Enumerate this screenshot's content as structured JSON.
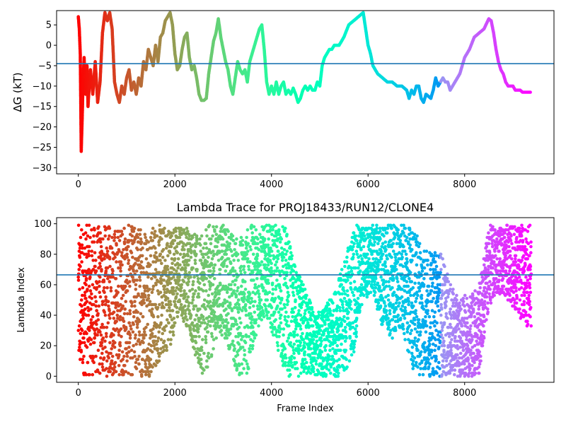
{
  "chart_data": [
    {
      "type": "scatter",
      "title": "",
      "xlabel": "",
      "ylabel": "ΔG (kT)",
      "xlim": [
        -450,
        9850
      ],
      "ylim": [
        -31.5,
        8.5
      ],
      "xticks": [
        0,
        2000,
        4000,
        6000,
        8000
      ],
      "yticks": [
        5,
        0,
        -5,
        -10,
        -15,
        -20,
        -25,
        -30
      ],
      "hline": -4.5,
      "hline_color": "#1f77b4",
      "colormap": "rainbow (reversed: red at frame 0, violet at last frame)",
      "grid": false,
      "trace": [
        [
          0,
          7
        ],
        [
          20,
          4
        ],
        [
          40,
          -2
        ],
        [
          60,
          -26
        ],
        [
          80,
          -18
        ],
        [
          100,
          -8
        ],
        [
          120,
          -3
        ],
        [
          150,
          -12
        ],
        [
          180,
          -5
        ],
        [
          200,
          -15
        ],
        [
          250,
          -6
        ],
        [
          300,
          -12
        ],
        [
          350,
          -4
        ],
        [
          400,
          -14
        ],
        [
          450,
          -9
        ],
        [
          500,
          3
        ],
        [
          550,
          8
        ],
        [
          600,
          6
        ],
        [
          650,
          8
        ],
        [
          700,
          4
        ],
        [
          750,
          -9
        ],
        [
          800,
          -12
        ],
        [
          850,
          -14
        ],
        [
          900,
          -10
        ],
        [
          950,
          -12
        ],
        [
          1000,
          -8
        ],
        [
          1050,
          -6
        ],
        [
          1100,
          -11
        ],
        [
          1150,
          -9
        ],
        [
          1200,
          -12
        ],
        [
          1250,
          -8
        ],
        [
          1300,
          -10
        ],
        [
          1350,
          -4
        ],
        [
          1400,
          -6
        ],
        [
          1450,
          -1
        ],
        [
          1500,
          -3
        ],
        [
          1550,
          -5
        ],
        [
          1600,
          0
        ],
        [
          1650,
          -4
        ],
        [
          1700,
          2
        ],
        [
          1750,
          3
        ],
        [
          1800,
          6
        ],
        [
          1850,
          7
        ],
        [
          1900,
          8
        ],
        [
          1950,
          5
        ],
        [
          2000,
          -2
        ],
        [
          2050,
          -6
        ],
        [
          2100,
          -5
        ],
        [
          2150,
          -1
        ],
        [
          2200,
          2
        ],
        [
          2250,
          3
        ],
        [
          2300,
          -3
        ],
        [
          2350,
          -6
        ],
        [
          2400,
          -5
        ],
        [
          2450,
          -8
        ],
        [
          2500,
          -12
        ],
        [
          2550,
          -13.5
        ],
        [
          2600,
          -13.5
        ],
        [
          2650,
          -13
        ],
        [
          2700,
          -7
        ],
        [
          2750,
          -3
        ],
        [
          2800,
          1
        ],
        [
          2850,
          3
        ],
        [
          2900,
          6.5
        ],
        [
          2950,
          2
        ],
        [
          3000,
          -1
        ],
        [
          3050,
          -4
        ],
        [
          3100,
          -6
        ],
        [
          3150,
          -10
        ],
        [
          3200,
          -12
        ],
        [
          3250,
          -8
        ],
        [
          3300,
          -4
        ],
        [
          3350,
          -6
        ],
        [
          3400,
          -7
        ],
        [
          3450,
          -6
        ],
        [
          3500,
          -9
        ],
        [
          3550,
          -4
        ],
        [
          3600,
          -2
        ],
        [
          3650,
          0
        ],
        [
          3700,
          2
        ],
        [
          3750,
          4
        ],
        [
          3800,
          5
        ],
        [
          3850,
          -1
        ],
        [
          3900,
          -9
        ],
        [
          3950,
          -12
        ],
        [
          4000,
          -10
        ],
        [
          4050,
          -12
        ],
        [
          4100,
          -9
        ],
        [
          4150,
          -12
        ],
        [
          4200,
          -10
        ],
        [
          4250,
          -9
        ],
        [
          4300,
          -12
        ],
        [
          4350,
          -11
        ],
        [
          4400,
          -12
        ],
        [
          4450,
          -10.5
        ],
        [
          4500,
          -12
        ],
        [
          4550,
          -14
        ],
        [
          4600,
          -13
        ],
        [
          4650,
          -11
        ],
        [
          4700,
          -10
        ],
        [
          4750,
          -11
        ],
        [
          4800,
          -10
        ],
        [
          4850,
          -11
        ],
        [
          4900,
          -11
        ],
        [
          4950,
          -9
        ],
        [
          5000,
          -10
        ],
        [
          5050,
          -5
        ],
        [
          5100,
          -3
        ],
        [
          5150,
          -2
        ],
        [
          5200,
          -1
        ],
        [
          5250,
          -1
        ],
        [
          5300,
          0
        ],
        [
          5400,
          0
        ],
        [
          5500,
          2
        ],
        [
          5600,
          5
        ],
        [
          5700,
          6
        ],
        [
          5800,
          7
        ],
        [
          5900,
          8
        ],
        [
          5950,
          4
        ],
        [
          6000,
          0
        ],
        [
          6050,
          -2
        ],
        [
          6100,
          -5
        ],
        [
          6200,
          -7
        ],
        [
          6300,
          -8
        ],
        [
          6400,
          -9
        ],
        [
          6500,
          -9
        ],
        [
          6600,
          -10
        ],
        [
          6700,
          -10
        ],
        [
          6800,
          -11
        ],
        [
          6850,
          -13
        ],
        [
          6900,
          -11
        ],
        [
          6950,
          -12
        ],
        [
          7000,
          -10
        ],
        [
          7050,
          -10
        ],
        [
          7100,
          -13
        ],
        [
          7150,
          -14
        ],
        [
          7200,
          -12
        ],
        [
          7300,
          -13
        ],
        [
          7350,
          -11
        ],
        [
          7400,
          -8
        ],
        [
          7450,
          -10
        ],
        [
          7550,
          -8
        ],
        [
          7600,
          -9
        ],
        [
          7650,
          -9
        ],
        [
          7700,
          -11
        ],
        [
          7800,
          -9
        ],
        [
          7900,
          -7
        ],
        [
          8000,
          -3
        ],
        [
          8100,
          -1
        ],
        [
          8200,
          2
        ],
        [
          8300,
          3
        ],
        [
          8400,
          4
        ],
        [
          8500,
          6.5
        ],
        [
          8550,
          6
        ],
        [
          8600,
          3
        ],
        [
          8650,
          -1
        ],
        [
          8700,
          -4
        ],
        [
          8750,
          -6
        ],
        [
          8800,
          -7
        ],
        [
          8850,
          -9
        ],
        [
          8900,
          -10
        ],
        [
          8950,
          -10
        ],
        [
          9000,
          -10
        ],
        [
          9050,
          -11
        ],
        [
          9100,
          -11
        ],
        [
          9150,
          -11
        ],
        [
          9200,
          -11.5
        ],
        [
          9300,
          -11.5
        ],
        [
          9380,
          -11.5
        ]
      ]
    },
    {
      "type": "scatter",
      "title": "Lambda Trace for PROJ18433/RUN12/CLONE4",
      "xlabel": "Frame Index",
      "ylabel": "Lambda Index",
      "xlim": [
        -450,
        9850
      ],
      "ylim": [
        -4,
        104
      ],
      "xticks": [
        0,
        2000,
        4000,
        6000,
        8000
      ],
      "yticks": [
        0,
        20,
        40,
        60,
        80,
        100
      ],
      "hline": 66.5,
      "hline_color": "#1f77b4",
      "colormap": "rainbow (reversed: red at frame 0, violet at last frame)",
      "grid": false,
      "point_count": 5000,
      "frame_range": [
        0,
        9380
      ],
      "value_range": [
        0,
        99
      ],
      "envelope": [
        [
          0,
          0,
          99
        ],
        [
          300,
          0,
          99
        ],
        [
          700,
          0,
          99
        ],
        [
          1000,
          0,
          99
        ],
        [
          1300,
          0,
          99
        ],
        [
          1500,
          0,
          99
        ],
        [
          1700,
          10,
          99
        ],
        [
          1900,
          20,
          99
        ],
        [
          2100,
          40,
          99
        ],
        [
          2300,
          30,
          99
        ],
        [
          2500,
          0,
          90
        ],
        [
          2700,
          5,
          99
        ],
        [
          2900,
          30,
          99
        ],
        [
          3100,
          20,
          99
        ],
        [
          3300,
          0,
          90
        ],
        [
          3500,
          0,
          99
        ],
        [
          3700,
          30,
          99
        ],
        [
          3900,
          40,
          99
        ],
        [
          4100,
          20,
          99
        ],
        [
          4300,
          0,
          99
        ],
        [
          4500,
          0,
          70
        ],
        [
          4700,
          0,
          60
        ],
        [
          4900,
          0,
          40
        ],
        [
          5100,
          0,
          45
        ],
        [
          5300,
          0,
          55
        ],
        [
          5500,
          0,
          75
        ],
        [
          5700,
          15,
          99
        ],
        [
          5900,
          50,
          99
        ],
        [
          6100,
          55,
          99
        ],
        [
          6300,
          30,
          99
        ],
        [
          6500,
          25,
          99
        ],
        [
          6700,
          30,
          99
        ],
        [
          6900,
          5,
          99
        ],
        [
          7100,
          0,
          90
        ],
        [
          7300,
          0,
          80
        ],
        [
          7500,
          0,
          85
        ],
        [
          7700,
          0,
          60
        ],
        [
          7900,
          0,
          50
        ],
        [
          8100,
          0,
          55
        ],
        [
          8300,
          0,
          60
        ],
        [
          8500,
          45,
          99
        ],
        [
          8700,
          55,
          99
        ],
        [
          8900,
          50,
          99
        ],
        [
          9100,
          40,
          99
        ],
        [
          9380,
          30,
          99
        ]
      ]
    }
  ]
}
